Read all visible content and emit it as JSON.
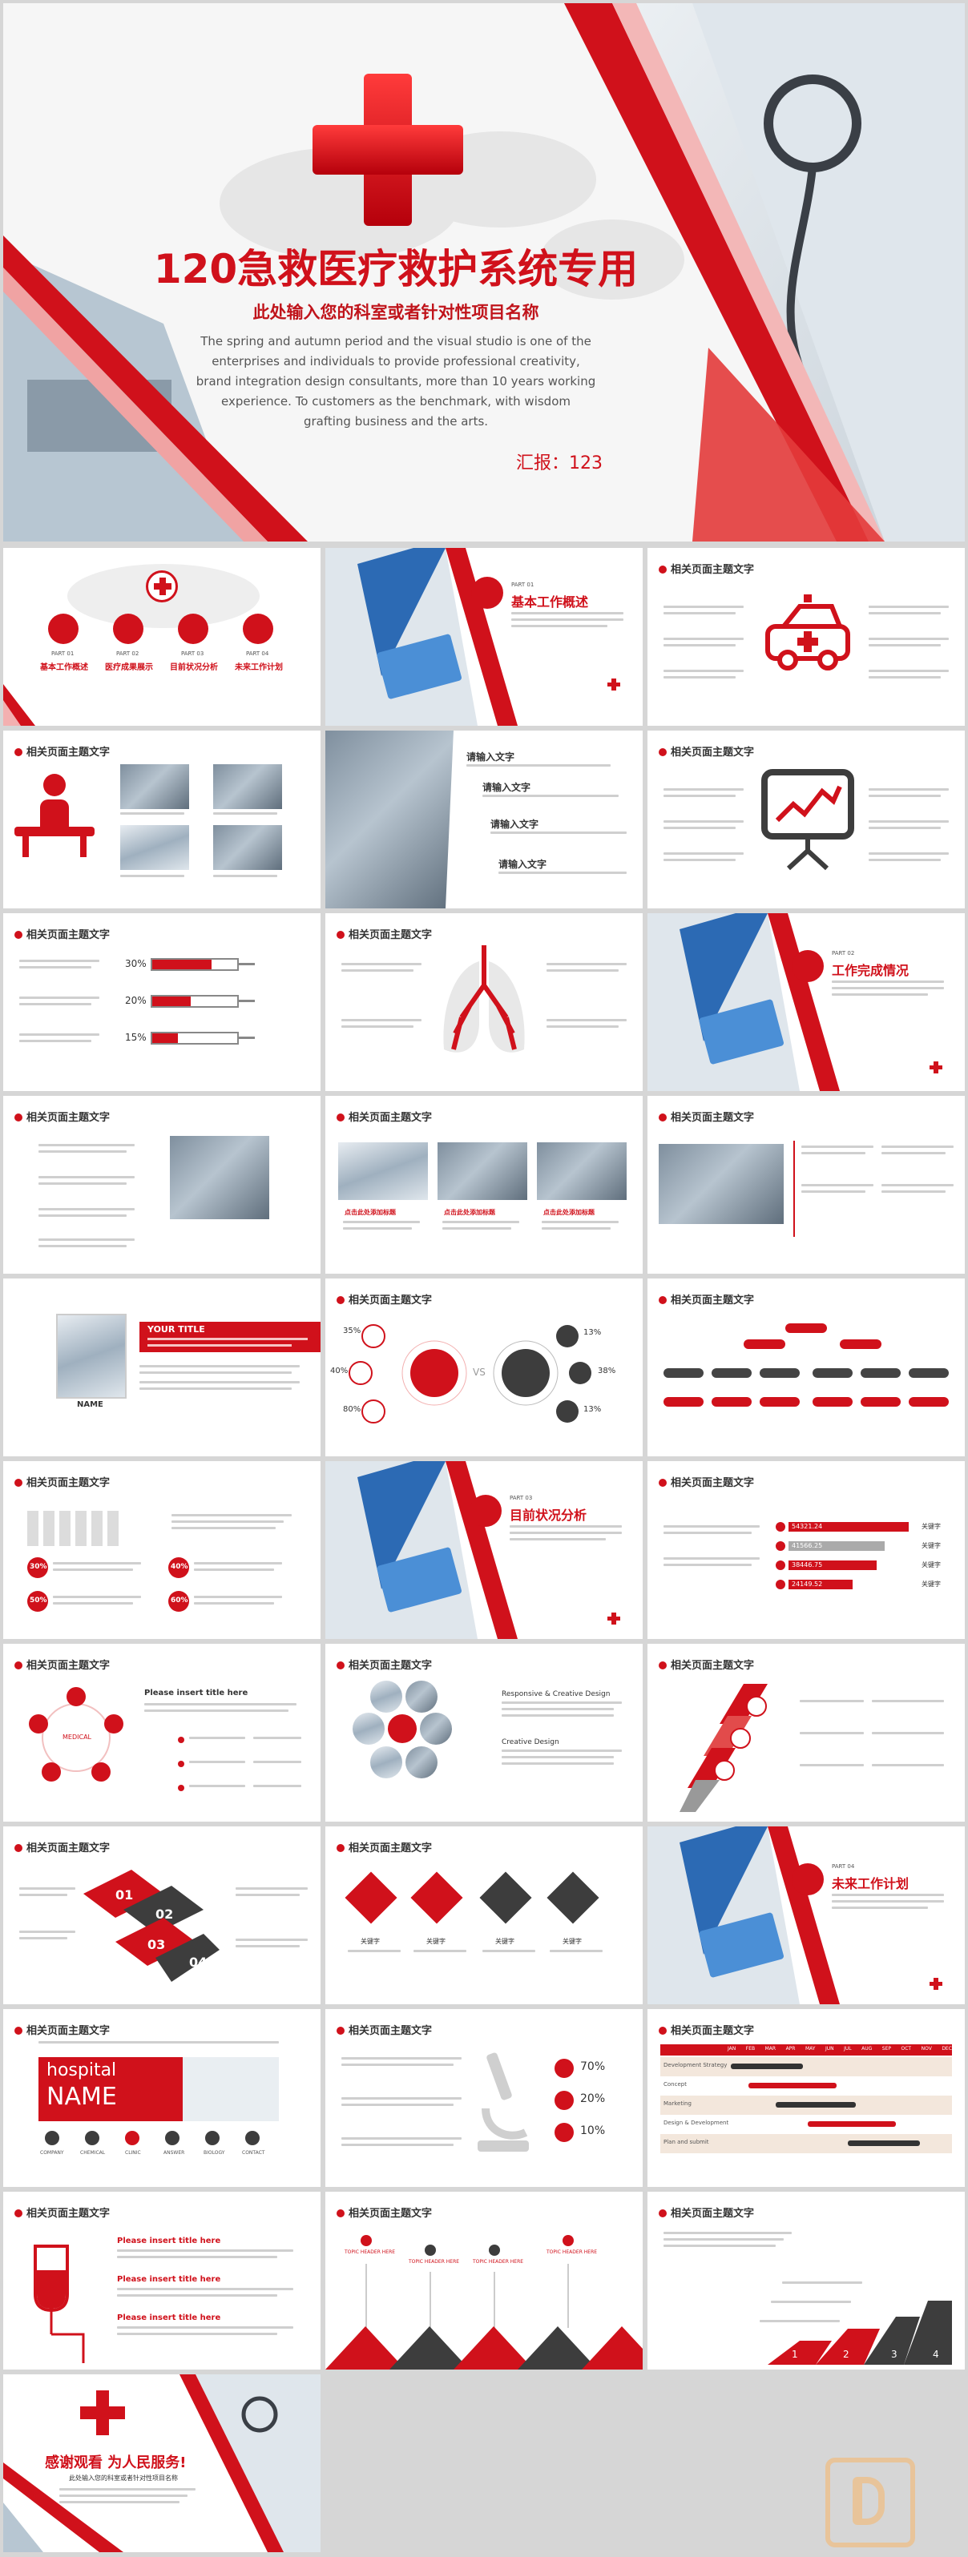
{
  "cover": {
    "title": "120急救医疗救护系统专用",
    "subtitle": "此处输入您的科室或者针对性项目名称",
    "body_lines": [
      "The spring and autumn period and the visual studio is one of the",
      "enterprises and individuals to provide professional creativity,",
      "brand integration design consultants, more than 10 years working",
      "experience. To customers as the benchmark, with wisdom",
      "grafting business and the arts."
    ],
    "reporter": "汇报：123"
  },
  "common": {
    "slide_header": "相关页面主题文字"
  },
  "agenda": {
    "items": [
      {
        "part": "PART 01",
        "label": "基本工作概述"
      },
      {
        "part": "PART 02",
        "label": "医疗成果展示"
      },
      {
        "part": "PART 03",
        "label": "目前状况分析"
      },
      {
        "part": "PART 04",
        "label": "未来工作计划"
      }
    ]
  },
  "sections": [
    {
      "part": "PART 01",
      "title": "基本工作概述"
    },
    {
      "part": "PART 02",
      "title": "工作完成情况"
    },
    {
      "part": "PART 03",
      "title": "目前状况分析"
    },
    {
      "part": "PART 04",
      "title": "未来工作计划"
    }
  ],
  "input_slide": {
    "items": [
      "请输入文字",
      "请输入文字",
      "请输入文字",
      "请输入文字"
    ]
  },
  "bars_slide": {
    "percents": [
      "30%",
      "20%",
      "15%"
    ]
  },
  "ops_slide": {
    "captions": [
      "点击此处添加标题",
      "点击此处添加标题",
      "点击此处添加标题"
    ]
  },
  "doctor_slide": {
    "title": "YOUR TITLE",
    "name": "NAME"
  },
  "circle_slide": {
    "left_percents": [
      "35%",
      "40%",
      "80%"
    ],
    "right_percents": [
      "13%",
      "38%",
      "13%"
    ],
    "vs": "VS"
  },
  "kpi_slide": {
    "left_percents": [
      "30%",
      "50%"
    ],
    "right_percents": [
      "40%",
      "60%"
    ]
  },
  "keyword_slide": {
    "values": [
      "54321.24",
      "41566.25",
      "38446.75",
      "24149.52"
    ],
    "label": "关键字"
  },
  "cycle_slide": {
    "title": "Please insert title here",
    "center": "MEDICAL"
  },
  "photo_grid_slide": {
    "headings": [
      "Responsive & Creative Design",
      "Creative Design"
    ]
  },
  "puzzle_slide": {
    "numbers": [
      "01",
      "02",
      "03",
      "04"
    ]
  },
  "diamond_slide": {
    "labels": [
      "关键字",
      "关键字",
      "关键字",
      "关键字"
    ]
  },
  "hospital_slide": {
    "word1": "hospital",
    "word2": "NAME",
    "icons": [
      "COMPANY",
      "CHEMICAL",
      "CLINIC",
      "ANSWER",
      "BIOLOGY",
      "CONTACT"
    ]
  },
  "microscope_slide": {
    "percents": [
      "70%",
      "20%",
      "10%"
    ]
  },
  "gantt_slide": {
    "rows": [
      "Development Strategy",
      "Concept",
      "Marketing",
      "Design & Development",
      "Plan and submit"
    ],
    "months": [
      "JAN",
      "FEB",
      "MAR",
      "APR",
      "MAY",
      "JUN",
      "JUL",
      "AUG",
      "SEP",
      "OCT",
      "NOV",
      "DEC"
    ]
  },
  "iv_slide": {
    "titles": [
      "Please insert title here",
      "Please insert title here",
      "Please insert title here"
    ]
  },
  "topic_slide": {
    "labels": [
      "TOPIC HEADER HERE",
      "TOPIC HEADER HERE",
      "TOPIC HEADER HERE",
      "TOPIC HEADER HERE"
    ]
  },
  "steps_slide": {
    "numbers": [
      "1",
      "2",
      "3",
      "4"
    ]
  },
  "ending": {
    "title": "感谢观看 为人民服务!",
    "subtitle": "此处输入您的科室或者针对性项目名称"
  },
  "colors": {
    "accent": "#d0111b",
    "dark": "#3d3d3d",
    "gray": "#d6d6d6"
  }
}
